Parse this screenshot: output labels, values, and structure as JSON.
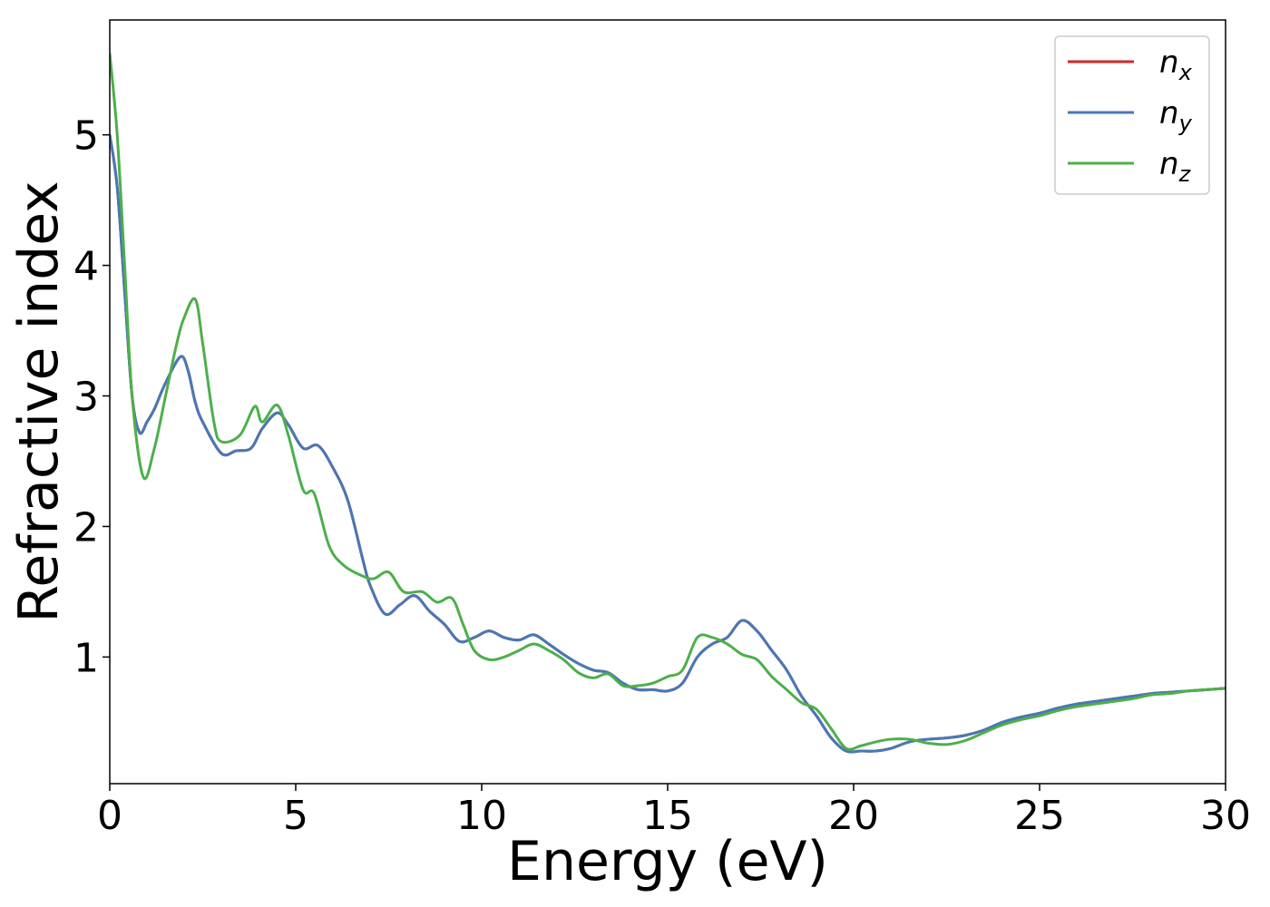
{
  "chart_data": {
    "type": "line",
    "title": "",
    "xlabel": "Energy (eV)",
    "ylabel": "Refractive index",
    "xlim": [
      0,
      30
    ],
    "ylim": [
      0.03,
      5.88
    ],
    "xticks": [
      0,
      5,
      10,
      15,
      20,
      25,
      30
    ],
    "yticks": [
      1,
      2,
      3,
      4,
      5
    ],
    "grid": false,
    "legend_position": "top-right",
    "series": [
      {
        "name": "n_x",
        "label_main": "n",
        "label_sub": "x",
        "color": "#d62728",
        "x": [
          0,
          0.2,
          0.4,
          0.6,
          0.8,
          1.0,
          1.2,
          1.5,
          1.9,
          2.1,
          2.3,
          2.5,
          3.0,
          3.4,
          3.8,
          4.1,
          4.5,
          4.8,
          5.2,
          5.6,
          6.0,
          6.4,
          6.8,
          7.0,
          7.4,
          7.8,
          8.2,
          8.6,
          9.0,
          9.4,
          9.8,
          10.2,
          10.6,
          11.0,
          11.4,
          11.8,
          12.2,
          12.6,
          13.0,
          13.4,
          13.8,
          14.2,
          14.6,
          15.0,
          15.4,
          15.8,
          16.2,
          16.6,
          17.0,
          17.4,
          17.8,
          18.2,
          18.6,
          19.0,
          19.4,
          19.8,
          20.2,
          20.6,
          21.0,
          21.5,
          22.0,
          22.5,
          23.0,
          23.5,
          24.0,
          24.5,
          25.0,
          25.5,
          26.0,
          26.5,
          27.0,
          27.5,
          28.0,
          28.5,
          29.0,
          29.5,
          30.0
        ],
        "y": [
          5.0,
          4.6,
          3.8,
          3.0,
          2.72,
          2.8,
          2.9,
          3.1,
          3.3,
          3.2,
          2.95,
          2.8,
          2.56,
          2.58,
          2.6,
          2.75,
          2.87,
          2.78,
          2.6,
          2.62,
          2.45,
          2.2,
          1.75,
          1.55,
          1.33,
          1.4,
          1.47,
          1.35,
          1.25,
          1.12,
          1.15,
          1.2,
          1.15,
          1.13,
          1.17,
          1.1,
          1.02,
          0.95,
          0.9,
          0.88,
          0.8,
          0.75,
          0.75,
          0.74,
          0.8,
          1.0,
          1.1,
          1.15,
          1.28,
          1.2,
          1.05,
          0.9,
          0.7,
          0.55,
          0.38,
          0.28,
          0.28,
          0.28,
          0.3,
          0.35,
          0.37,
          0.38,
          0.4,
          0.44,
          0.5,
          0.54,
          0.57,
          0.61,
          0.64,
          0.66,
          0.68,
          0.7,
          0.72,
          0.73,
          0.74,
          0.75,
          0.76
        ]
      },
      {
        "name": "n_y",
        "label_main": "n",
        "label_sub": "y",
        "color": "#4878b6",
        "x": [
          0,
          0.2,
          0.4,
          0.6,
          0.8,
          1.0,
          1.2,
          1.5,
          1.9,
          2.1,
          2.3,
          2.5,
          3.0,
          3.4,
          3.8,
          4.1,
          4.5,
          4.8,
          5.2,
          5.6,
          6.0,
          6.4,
          6.8,
          7.0,
          7.4,
          7.8,
          8.2,
          8.6,
          9.0,
          9.4,
          9.8,
          10.2,
          10.6,
          11.0,
          11.4,
          11.8,
          12.2,
          12.6,
          13.0,
          13.4,
          13.8,
          14.2,
          14.6,
          15.0,
          15.4,
          15.8,
          16.2,
          16.6,
          17.0,
          17.4,
          17.8,
          18.2,
          18.6,
          19.0,
          19.4,
          19.8,
          20.2,
          20.6,
          21.0,
          21.5,
          22.0,
          22.5,
          23.0,
          23.5,
          24.0,
          24.5,
          25.0,
          25.5,
          26.0,
          26.5,
          27.0,
          27.5,
          28.0,
          28.5,
          29.0,
          29.5,
          30.0
        ],
        "y": [
          5.0,
          4.6,
          3.8,
          3.0,
          2.72,
          2.8,
          2.9,
          3.1,
          3.3,
          3.2,
          2.95,
          2.8,
          2.56,
          2.58,
          2.6,
          2.75,
          2.87,
          2.78,
          2.6,
          2.62,
          2.45,
          2.2,
          1.75,
          1.55,
          1.33,
          1.4,
          1.47,
          1.35,
          1.25,
          1.12,
          1.15,
          1.2,
          1.15,
          1.13,
          1.17,
          1.1,
          1.02,
          0.95,
          0.9,
          0.88,
          0.8,
          0.75,
          0.75,
          0.74,
          0.8,
          1.0,
          1.1,
          1.15,
          1.28,
          1.2,
          1.05,
          0.9,
          0.7,
          0.55,
          0.38,
          0.28,
          0.28,
          0.28,
          0.3,
          0.35,
          0.37,
          0.38,
          0.4,
          0.44,
          0.5,
          0.54,
          0.57,
          0.61,
          0.64,
          0.66,
          0.68,
          0.7,
          0.72,
          0.73,
          0.74,
          0.75,
          0.76
        ]
      },
      {
        "name": "n_z",
        "label_main": "n",
        "label_sub": "z",
        "color": "#4daf4a",
        "x": [
          0,
          0.2,
          0.4,
          0.6,
          0.9,
          1.2,
          1.5,
          1.8,
          2.0,
          2.3,
          2.5,
          2.8,
          3.0,
          3.5,
          3.9,
          4.1,
          4.5,
          4.8,
          5.2,
          5.5,
          5.9,
          6.3,
          6.8,
          7.1,
          7.5,
          7.9,
          8.4,
          8.8,
          9.2,
          9.5,
          9.8,
          10.2,
          10.6,
          11.0,
          11.4,
          11.8,
          12.2,
          12.6,
          13.0,
          13.4,
          13.8,
          14.2,
          14.6,
          15.0,
          15.4,
          15.8,
          16.2,
          16.6,
          17.0,
          17.4,
          17.8,
          18.2,
          18.6,
          19.0,
          19.4,
          19.8,
          20.2,
          20.6,
          21.0,
          21.5,
          22.0,
          22.5,
          23.0,
          23.5,
          24.0,
          24.5,
          25.0,
          25.5,
          26.0,
          26.5,
          27.0,
          27.5,
          28.0,
          28.5,
          29.0,
          29.5,
          30.0
        ],
        "y": [
          5.62,
          5.0,
          4.0,
          3.0,
          2.38,
          2.6,
          3.0,
          3.4,
          3.6,
          3.74,
          3.4,
          2.8,
          2.65,
          2.7,
          2.92,
          2.8,
          2.93,
          2.7,
          2.28,
          2.25,
          1.85,
          1.7,
          1.62,
          1.6,
          1.65,
          1.5,
          1.5,
          1.42,
          1.45,
          1.25,
          1.05,
          0.98,
          1.0,
          1.05,
          1.1,
          1.05,
          0.98,
          0.88,
          0.84,
          0.87,
          0.78,
          0.78,
          0.8,
          0.85,
          0.9,
          1.15,
          1.15,
          1.1,
          1.02,
          0.98,
          0.85,
          0.75,
          0.65,
          0.6,
          0.45,
          0.3,
          0.32,
          0.35,
          0.37,
          0.37,
          0.34,
          0.33,
          0.36,
          0.42,
          0.48,
          0.52,
          0.55,
          0.59,
          0.62,
          0.64,
          0.66,
          0.68,
          0.71,
          0.72,
          0.74,
          0.75,
          0.76
        ]
      }
    ]
  }
}
